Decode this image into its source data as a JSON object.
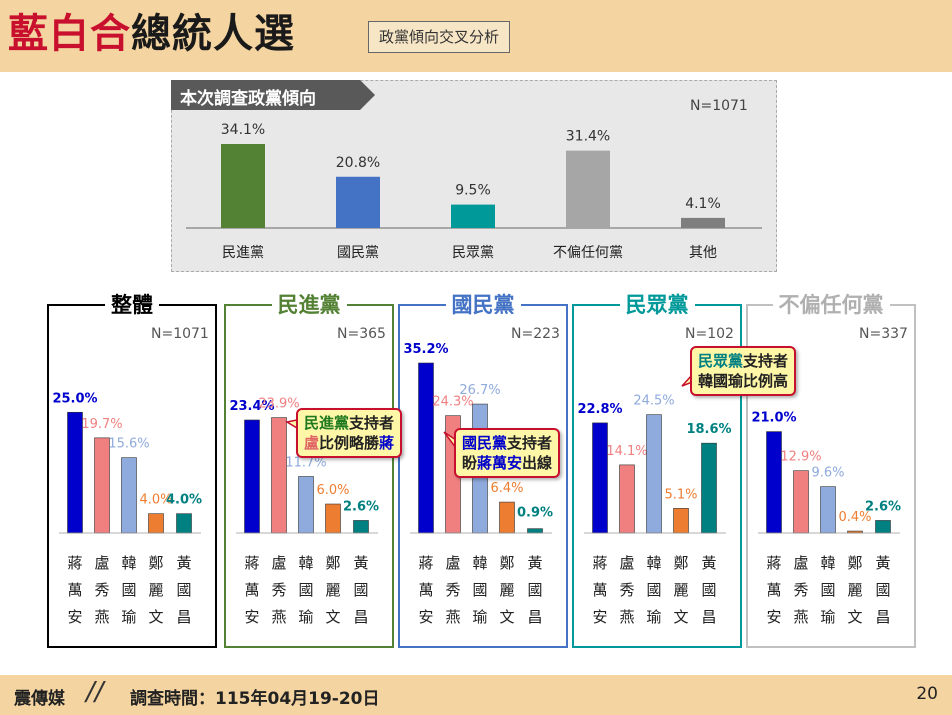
{
  "header": {
    "title_blue_white": "藍白合",
    "title_rest": "總統人選",
    "subtitle": "政黨傾向交叉分析"
  },
  "top_chart": {
    "tab_label": "本次調查政黨傾向",
    "n_label": "N=1071"
  },
  "footer": {
    "brand": "震傳媒",
    "survey_date": "調查時間：115年04月19-20日",
    "page_number": "20"
  },
  "callouts": {
    "dpp": {
      "line1_party": "民進黨",
      "line1_rest": "支持者",
      "line2_name": "盧",
      "line2_mid": "比例略勝",
      "line2_name2": "蔣"
    },
    "kmt": {
      "line1_party": "國民黨",
      "line1_rest": "支持者",
      "line2_pre": "盼",
      "line2_name": "蔣萬安",
      "line2_post": "出線"
    },
    "tpp": {
      "line1_party": "民眾黨",
      "line1_rest": "支持者",
      "line2": "韓國瑜比例高"
    }
  },
  "colors": {
    "dpp": "#548235",
    "kmt": "#4472c4",
    "tpp": "#009999",
    "neutral": "#a6a6a6",
    "other": "#7f7f7f",
    "chiang": "#0000cc",
    "lu": "#f08080",
    "han": "#8faadc",
    "cheng": "#ed7d31",
    "huang": "#008080"
  },
  "chart_data": [
    {
      "type": "bar",
      "title": "本次調查政黨傾向",
      "categories": [
        "民進黨",
        "國民黨",
        "民眾黨",
        "不偏任何黨",
        "其他"
      ],
      "values": [
        34.1,
        20.8,
        9.5,
        31.4,
        4.1
      ],
      "value_labels": [
        "34.1%",
        "20.8%",
        "9.5%",
        "31.4%",
        "4.1%"
      ],
      "ylim": [
        0,
        40
      ]
    },
    {
      "type": "bar",
      "categories": [
        "蔣萬安",
        "盧秀燕",
        "韓國瑜",
        "鄭麗文",
        "黃國昌"
      ],
      "ylim": [
        0,
        40
      ],
      "series": [
        {
          "name": "整體",
          "n": "N=1071",
          "values": [
            25.0,
            19.7,
            15.6,
            4.0,
            4.0
          ],
          "value_labels": [
            "25.0%",
            "19.7%",
            "15.6%",
            "4.0%",
            "4.0%"
          ]
        },
        {
          "name": "民進黨",
          "n": "N=365",
          "values": [
            23.4,
            23.9,
            11.7,
            6.0,
            2.6
          ],
          "value_labels": [
            "23.4%",
            "23.9%",
            "11.7%",
            "6.0%",
            "2.6%"
          ]
        },
        {
          "name": "國民黨",
          "n": "N=223",
          "values": [
            35.2,
            24.3,
            26.7,
            6.4,
            0.9
          ],
          "value_labels": [
            "35.2%",
            "24.3%",
            "26.7%",
            "6.4%",
            "0.9%"
          ]
        },
        {
          "name": "民眾黨",
          "n": "N=102",
          "values": [
            22.8,
            14.1,
            24.5,
            5.1,
            18.6
          ],
          "value_labels": [
            "22.8%",
            "14.1%",
            "24.5%",
            "5.1%",
            "18.6%"
          ]
        },
        {
          "name": "不偏任何黨",
          "n": "N=337",
          "values": [
            21.0,
            12.9,
            9.6,
            0.4,
            2.6
          ],
          "value_labels": [
            "21.0%",
            "12.9%",
            "9.6%",
            "0.4%",
            "2.6%"
          ]
        }
      ]
    }
  ]
}
